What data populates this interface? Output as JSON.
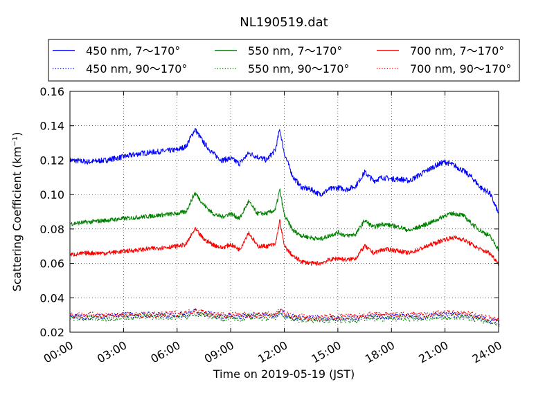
{
  "chart_data": {
    "type": "line",
    "title": "NL190519.dat",
    "xlabel": "Time on 2019-05-19 (JST)",
    "ylabel": "Scattering Coefficient (km⁻¹)",
    "xlim": [
      "00:00",
      "24:00"
    ],
    "ylim": [
      0.02,
      0.16
    ],
    "x_tick_labels": [
      "00:00",
      "03:00",
      "06:00",
      "09:00",
      "12:00",
      "15:00",
      "18:00",
      "21:00",
      "24:00"
    ],
    "y_tick_labels": [
      "0.02",
      "0.04",
      "0.06",
      "0.08",
      "0.10",
      "0.12",
      "0.14",
      "0.16"
    ],
    "grid": true,
    "legend_placement": "top, above plot, 3 columns",
    "x": [
      "00:00",
      "01:00",
      "02:00",
      "03:00",
      "04:00",
      "05:00",
      "06:00",
      "06:30",
      "07:00",
      "07:30",
      "08:00",
      "08:30",
      "09:00",
      "09:30",
      "10:00",
      "10:30",
      "11:00",
      "11:30",
      "11:45",
      "12:00",
      "12:30",
      "13:00",
      "13:30",
      "14:00",
      "14:30",
      "15:00",
      "15:30",
      "16:00",
      "16:30",
      "17:00",
      "17:30",
      "18:00",
      "18:30",
      "19:00",
      "19:30",
      "20:00",
      "20:30",
      "21:00",
      "21:30",
      "22:00",
      "22:30",
      "23:00",
      "23:30",
      "24:00"
    ],
    "series": [
      {
        "name": "450 nm, 7～170°",
        "color": "#0000ff",
        "style": "solid",
        "values": [
          0.12,
          0.119,
          0.12,
          0.122,
          0.124,
          0.125,
          0.126,
          0.128,
          0.138,
          0.13,
          0.124,
          0.12,
          0.121,
          0.118,
          0.124,
          0.122,
          0.12,
          0.126,
          0.138,
          0.124,
          0.11,
          0.104,
          0.103,
          0.1,
          0.103,
          0.104,
          0.103,
          0.105,
          0.113,
          0.108,
          0.11,
          0.109,
          0.109,
          0.108,
          0.111,
          0.114,
          0.117,
          0.119,
          0.117,
          0.114,
          0.11,
          0.104,
          0.101,
          0.089
        ]
      },
      {
        "name": "450 nm, 90～170°",
        "color": "#0000ff",
        "style": "dotted",
        "values": [
          0.029,
          0.029,
          0.029,
          0.03,
          0.03,
          0.03,
          0.03,
          0.03,
          0.032,
          0.031,
          0.03,
          0.029,
          0.03,
          0.029,
          0.03,
          0.03,
          0.029,
          0.03,
          0.032,
          0.03,
          0.029,
          0.028,
          0.028,
          0.028,
          0.028,
          0.028,
          0.028,
          0.028,
          0.029,
          0.029,
          0.029,
          0.029,
          0.029,
          0.029,
          0.029,
          0.029,
          0.03,
          0.03,
          0.03,
          0.03,
          0.029,
          0.028,
          0.027,
          0.026
        ]
      },
      {
        "name": "550 nm, 7～170°",
        "color": "#008000",
        "style": "solid",
        "values": [
          0.083,
          0.084,
          0.085,
          0.086,
          0.087,
          0.088,
          0.089,
          0.09,
          0.101,
          0.094,
          0.089,
          0.087,
          0.089,
          0.086,
          0.096,
          0.089,
          0.089,
          0.091,
          0.103,
          0.088,
          0.079,
          0.076,
          0.075,
          0.074,
          0.076,
          0.078,
          0.076,
          0.077,
          0.085,
          0.081,
          0.083,
          0.082,
          0.081,
          0.079,
          0.081,
          0.083,
          0.085,
          0.088,
          0.089,
          0.088,
          0.083,
          0.079,
          0.076,
          0.068
        ]
      },
      {
        "name": "550 nm, 90～170°",
        "color": "#008000",
        "style": "dotted",
        "values": [
          0.028,
          0.028,
          0.028,
          0.029,
          0.029,
          0.029,
          0.029,
          0.029,
          0.031,
          0.03,
          0.029,
          0.028,
          0.029,
          0.028,
          0.029,
          0.029,
          0.028,
          0.029,
          0.031,
          0.029,
          0.028,
          0.027,
          0.027,
          0.027,
          0.027,
          0.027,
          0.027,
          0.027,
          0.028,
          0.028,
          0.028,
          0.028,
          0.028,
          0.028,
          0.028,
          0.028,
          0.029,
          0.029,
          0.029,
          0.029,
          0.028,
          0.027,
          0.026,
          0.025
        ]
      },
      {
        "name": "700 nm, 7～170°",
        "color": "#ff0000",
        "style": "solid",
        "values": [
          0.065,
          0.066,
          0.066,
          0.067,
          0.068,
          0.069,
          0.07,
          0.071,
          0.08,
          0.074,
          0.071,
          0.069,
          0.071,
          0.068,
          0.078,
          0.07,
          0.07,
          0.071,
          0.085,
          0.07,
          0.064,
          0.061,
          0.06,
          0.06,
          0.062,
          0.063,
          0.062,
          0.063,
          0.07,
          0.066,
          0.068,
          0.068,
          0.067,
          0.066,
          0.068,
          0.07,
          0.072,
          0.074,
          0.075,
          0.074,
          0.071,
          0.068,
          0.066,
          0.06
        ]
      },
      {
        "name": "700 nm, 90～170°",
        "color": "#ff0000",
        "style": "dotted",
        "values": [
          0.03,
          0.03,
          0.03,
          0.03,
          0.03,
          0.03,
          0.031,
          0.031,
          0.033,
          0.031,
          0.03,
          0.03,
          0.03,
          0.03,
          0.03,
          0.03,
          0.03,
          0.031,
          0.033,
          0.031,
          0.029,
          0.029,
          0.028,
          0.028,
          0.029,
          0.029,
          0.029,
          0.029,
          0.03,
          0.03,
          0.03,
          0.03,
          0.03,
          0.03,
          0.03,
          0.03,
          0.031,
          0.031,
          0.031,
          0.031,
          0.03,
          0.029,
          0.028,
          0.027
        ]
      }
    ]
  }
}
